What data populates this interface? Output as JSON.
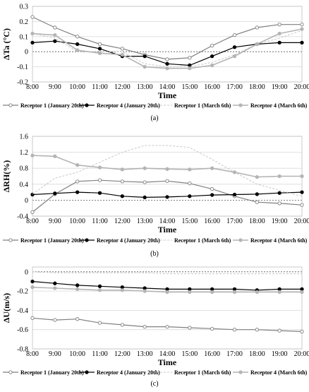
{
  "figure": {
    "panels": [
      "(a)",
      "(b)",
      "(c)"
    ],
    "legend": [
      "Receptor 1 (January 20th)",
      "Receptor 4 (January 20th)",
      "Receptor 1 (March 6th)",
      "Receptor 4 (March 6th)"
    ],
    "series_colors": [
      "#7f7f7f",
      "#000000",
      "#c8c8c8",
      "#b4b4b4"
    ]
  },
  "chart_data": [
    {
      "type": "line",
      "panel": "(a)",
      "xlabel": "Time",
      "ylabel": "ΔTa (°C)",
      "categories": [
        "8:00",
        "9:00",
        "10:00",
        "11:00",
        "12:00",
        "13:00",
        "14:00",
        "15:00",
        "16:00",
        "17:00",
        "18:00",
        "19:00",
        "20:00"
      ],
      "yticks": [
        "-0.2",
        "-0.1",
        "0",
        "0.1",
        "0.2",
        "0.3"
      ],
      "ylim": [
        -0.2,
        0.3
      ],
      "grid": true,
      "series": [
        {
          "name": "Receptor 1 (January 20th)",
          "values": [
            0.23,
            0.16,
            0.1,
            0.05,
            0.02,
            -0.02,
            -0.05,
            -0.04,
            0.04,
            0.11,
            0.16,
            0.18,
            0.18
          ]
        },
        {
          "name": "Receptor 4 (January 20th)",
          "values": [
            0.06,
            0.07,
            0.05,
            0.02,
            -0.03,
            -0.03,
            -0.08,
            -0.09,
            -0.03,
            0.03,
            0.05,
            0.06,
            0.06
          ]
        },
        {
          "name": "Receptor 1 (March 6th)",
          "values": [
            0.12,
            0.09,
            0.0,
            0.0,
            0.0,
            -0.08,
            -0.1,
            -0.1,
            -0.07,
            -0.02,
            0.05,
            0.09,
            0.14
          ]
        },
        {
          "name": "Receptor 4 (March 6th)",
          "values": [
            0.12,
            0.11,
            0.01,
            -0.01,
            -0.02,
            -0.1,
            -0.11,
            -0.11,
            -0.09,
            -0.03,
            0.05,
            0.12,
            0.15
          ]
        }
      ]
    },
    {
      "type": "line",
      "panel": "(b)",
      "xlabel": "Time",
      "ylabel": "ΔRH(%)",
      "categories": [
        "8:00",
        "9:00",
        "10:00",
        "11:00",
        "12:00",
        "13:00",
        "14:00",
        "15:00",
        "16:00",
        "17:00",
        "18:00",
        "19:00",
        "20:00"
      ],
      "yticks": [
        "-0.4",
        "0",
        "0.4",
        "0.8",
        "1.2",
        "1.6"
      ],
      "ylim": [
        -0.4,
        1.6
      ],
      "grid": true,
      "series": [
        {
          "name": "Receptor 1 (January 20th)",
          "values": [
            -0.3,
            0.15,
            0.47,
            0.5,
            0.47,
            0.45,
            0.48,
            0.42,
            0.28,
            0.1,
            -0.05,
            -0.08,
            -0.12
          ]
        },
        {
          "name": "Receptor 4 (January 20th)",
          "values": [
            0.14,
            0.17,
            0.2,
            0.18,
            0.1,
            0.07,
            0.08,
            0.1,
            0.13,
            0.14,
            0.15,
            0.18,
            0.2
          ]
        },
        {
          "name": "Receptor 1 (March 6th)",
          "values": [
            0.15,
            0.55,
            0.7,
            0.95,
            1.2,
            1.37,
            1.37,
            1.32,
            1.02,
            0.7,
            0.4,
            0.25,
            0.1
          ]
        },
        {
          "name": "Receptor 4 (March 6th)",
          "values": [
            1.12,
            1.1,
            0.88,
            0.82,
            0.77,
            0.8,
            0.78,
            0.77,
            0.8,
            0.7,
            0.58,
            0.6,
            0.6
          ]
        }
      ]
    },
    {
      "type": "line",
      "panel": "(c)",
      "xlabel": "Time",
      "ylabel": "ΔU(m/s)",
      "categories": [
        "8:00",
        "9:00",
        "10:00",
        "11:00",
        "12:00",
        "13:00",
        "14:00",
        "15:00",
        "16:00",
        "17:00",
        "18:00",
        "19:00",
        "20:00"
      ],
      "yticks": [
        "-0.8",
        "-0.6",
        "-0.4",
        "-0.2",
        "0"
      ],
      "ylim": [
        -0.8,
        0.05
      ],
      "grid": true,
      "series": [
        {
          "name": "Receptor 1 (January 20th)",
          "values": [
            -0.48,
            -0.5,
            -0.49,
            -0.53,
            -0.55,
            -0.57,
            -0.57,
            -0.58,
            -0.59,
            -0.6,
            -0.6,
            -0.61,
            -0.62
          ]
        },
        {
          "name": "Receptor 4 (January 20th)",
          "values": [
            -0.1,
            -0.12,
            -0.14,
            -0.15,
            -0.16,
            -0.17,
            -0.18,
            -0.18,
            -0.18,
            -0.18,
            -0.19,
            -0.18,
            -0.18
          ]
        },
        {
          "name": "Receptor 1 (March 6th)",
          "values": [
            0.0,
            -0.01,
            -0.01,
            -0.01,
            -0.01,
            -0.01,
            -0.02,
            -0.02,
            -0.02,
            -0.02,
            -0.02,
            -0.02,
            -0.02
          ]
        },
        {
          "name": "Receptor 4 (March 6th)",
          "values": [
            -0.16,
            -0.17,
            -0.18,
            -0.19,
            -0.19,
            -0.2,
            -0.21,
            -0.21,
            -0.21,
            -0.21,
            -0.21,
            -0.21,
            -0.21
          ]
        }
      ]
    }
  ]
}
